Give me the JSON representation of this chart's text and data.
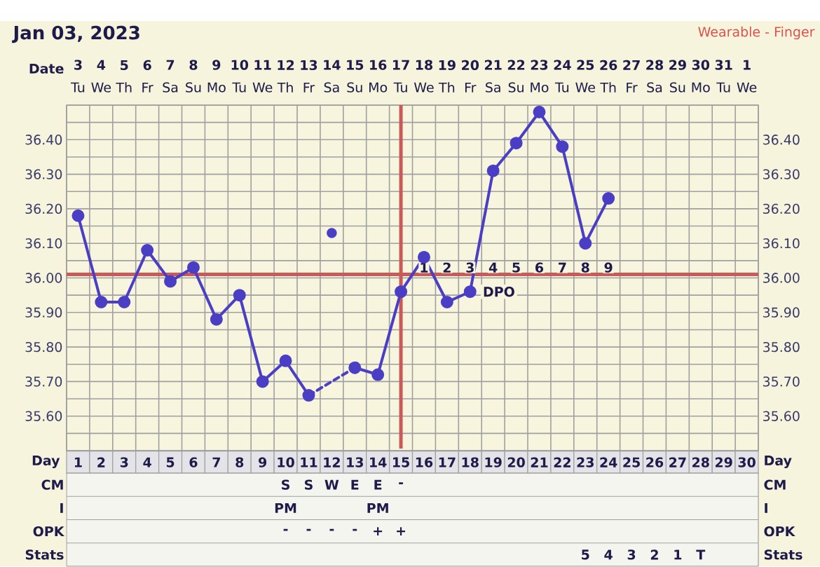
{
  "chart_data": [
    {
      "type": "heatmap",
      "title": "Jan 03, 2023",
      "subtitle": "Wearable - Finger",
      "grid": false,
      "categories": [
        "**3** Tu",
        "**4** We",
        "**5** Th",
        "**6** Fr",
        "**7** Sa",
        "**8** Su",
        "**9** Mo",
        "**10** Tu",
        "**11** We",
        "**12** Th",
        "**13** Fr",
        "**14** Sa",
        "**15** Su",
        "**16** Mo",
        "**17** Tu",
        "**18** We",
        "**19** Th",
        "**20** Fr",
        "**21** Sa",
        "**22** Su",
        "**23** Mo",
        "**24** Tu",
        "**25** We",
        "**26** Th",
        "**27** Fr",
        "**28** Sa",
        "**29** Su",
        "**30** Mo",
        "**31** Tu",
        "**1** We"
      ],
      "y_categories": [
        "Date"
      ],
      "cells": [
        [
          null,
          null,
          null,
          null,
          null,
          null,
          null,
          null,
          null,
          null,
          null,
          null,
          null,
          null,
          null,
          null,
          null,
          null,
          null,
          null,
          null,
          null,
          null,
          null,
          null,
          null,
          null,
          null,
          null,
          null
        ]
      ]
    },
    {
      "type": "line",
      "xlabel": "Day",
      "x": [
        1,
        2,
        3,
        4,
        5,
        6,
        7,
        8,
        9,
        10,
        11,
        12,
        13,
        14,
        15,
        16,
        17,
        18,
        19,
        20,
        21,
        22,
        23,
        24
      ],
      "xlim": [
        0.5,
        30.5
      ],
      "xticks": [
        1,
        2,
        3,
        4,
        5,
        6,
        7,
        8,
        9,
        10,
        11,
        12,
        13,
        14,
        15,
        16,
        17,
        18,
        19,
        20,
        21,
        22,
        23,
        24,
        25,
        26,
        27,
        28,
        29,
        30
      ],
      "ylim": [
        35.5,
        36.5
      ],
      "yticks": [
        {
          "value": 35.6,
          "label": "35.60"
        },
        {
          "value": 35.7,
          "label": "35.70"
        },
        {
          "value": 35.8,
          "label": "35.80"
        },
        {
          "value": 35.9,
          "label": "35.90"
        },
        {
          "value": 36.0,
          "label": "36.00"
        },
        {
          "value": 36.1,
          "label": "36.10"
        },
        {
          "value": 36.2,
          "label": "36.20"
        },
        {
          "value": 36.3,
          "label": "36.30"
        },
        {
          "value": 36.4,
          "label": "36.40"
        }
      ],
      "y2lim": [
        35.5,
        36.5
      ],
      "y2ticks": [
        {
          "value": 35.6,
          "label": "35.60"
        },
        {
          "value": 35.7,
          "label": "35.70"
        },
        {
          "value": 35.8,
          "label": "35.80"
        },
        {
          "value": 35.9,
          "label": "35.90"
        },
        {
          "value": 36.0,
          "label": "36.00"
        },
        {
          "value": 36.1,
          "label": "36.10"
        },
        {
          "value": 36.2,
          "label": "36.20"
        },
        {
          "value": 36.3,
          "label": "36.30"
        },
        {
          "value": 36.4,
          "label": "36.40"
        }
      ],
      "grid": true,
      "marker": "circle",
      "series": [
        {
          "color": "#4a3ec4",
          "values": [
            36.18,
            35.93,
            35.93,
            36.08,
            35.99,
            36.03,
            35.88,
            35.95,
            35.7,
            35.76,
            35.66,
            null,
            35.74,
            35.72,
            35.96,
            36.06,
            35.93,
            35.96,
            36.31,
            36.39,
            36.48,
            36.38,
            36.1,
            36.23
          ]
        },
        {
          "color": "#4b3fc6",
          "x": [
            11,
            13
          ],
          "values": [
            35.66,
            35.74
          ],
          "line_style": "dashed",
          "marker": "none"
        },
        {
          "type": "scatter",
          "color": "#4a3ec4",
          "x": [
            12
          ],
          "values": [
            36.13
          ]
        }
      ],
      "ref_lines": [
        {
          "axis": "y",
          "value": 36.01,
          "color": "#c85a5a"
        },
        {
          "axis": "x",
          "value": 15,
          "color": "#c85a5a"
        }
      ],
      "annotations": [
        {
          "text": "1",
          "x": 16,
          "y": 36.03
        },
        {
          "text": "2",
          "x": 17,
          "y": 36.03
        },
        {
          "text": "3",
          "x": 18,
          "y": 36.03
        },
        {
          "text": "4",
          "x": 19,
          "y": 36.03
        },
        {
          "text": "5",
          "x": 20,
          "y": 36.03
        },
        {
          "text": "6",
          "x": 21,
          "y": 36.03
        },
        {
          "text": "7",
          "x": 22,
          "y": 36.03
        },
        {
          "text": "8",
          "x": 23,
          "y": 36.03
        },
        {
          "text": "9",
          "x": 24,
          "y": 36.03
        },
        "DPO"
      ]
    },
    {
      "type": "heatmap",
      "grid": true,
      "tick_labels": "y",
      "categories": [
        null,
        null,
        null,
        null,
        null,
        null,
        null,
        null,
        null,
        null,
        null,
        null,
        null,
        null,
        null,
        null,
        null,
        null,
        null,
        null,
        null,
        null,
        null,
        null,
        null,
        null,
        null,
        null,
        null,
        null
      ],
      "y_categories": [
        "CM",
        "I",
        "OPK",
        "Stats"
      ],
      "y2_categories": [
        "CM",
        "I",
        "OPK",
        "Stats"
      ],
      "cells": [
        [
          null,
          null,
          null,
          null,
          null,
          null,
          null,
          null,
          null,
          null,
          null,
          null,
          null,
          null,
          null,
          null,
          null,
          null,
          null,
          null,
          null,
          null,
          null,
          null,
          null,
          null,
          null,
          null,
          null,
          null
        ],
        [
          null,
          null,
          null,
          null,
          null,
          null,
          null,
          null,
          null,
          null,
          null,
          null,
          null,
          null,
          null,
          null,
          null,
          null,
          null,
          null,
          null,
          null,
          null,
          null,
          null,
          null,
          null,
          null,
          null,
          null
        ],
        [
          null,
          null,
          null,
          null,
          null,
          null,
          null,
          null,
          null,
          null,
          null,
          null,
          null,
          null,
          null,
          null,
          null,
          null,
          null,
          null,
          null,
          null,
          null,
          null,
          null,
          null,
          null,
          null,
          null,
          null
        ],
        [
          null,
          null,
          null,
          null,
          null,
          null,
          null,
          null,
          null,
          null,
          null,
          null,
          null,
          null,
          null,
          null,
          null,
          null,
          null,
          null,
          null,
          null,
          null,
          null,
          null,
          null,
          null,
          null,
          null,
          null
        ]
      ],
      "cell_labels": [
        [
          null,
          null,
          null,
          null,
          null,
          null,
          null,
          null,
          null,
          "S",
          "S",
          "W",
          "E",
          "E",
          "-",
          null,
          null,
          null,
          null,
          null,
          null,
          null,
          null,
          null,
          null,
          null,
          null,
          null,
          null,
          null
        ],
        [
          null,
          null,
          null,
          null,
          null,
          null,
          null,
          null,
          null,
          "PM",
          null,
          null,
          null,
          "PM",
          null,
          null,
          null,
          null,
          null,
          null,
          null,
          null,
          null,
          null,
          null,
          null,
          null,
          null,
          null,
          null
        ],
        [
          null,
          null,
          null,
          null,
          null,
          null,
          null,
          null,
          null,
          "-",
          "-",
          "-",
          "-",
          "+",
          "+",
          null,
          null,
          null,
          null,
          null,
          null,
          null,
          null,
          null,
          null,
          null,
          null,
          null,
          null,
          null
        ],
        [
          null,
          null,
          null,
          null,
          null,
          null,
          null,
          null,
          null,
          null,
          null,
          null,
          null,
          null,
          null,
          null,
          null,
          null,
          null,
          null,
          null,
          null,
          "5",
          "4",
          "3",
          "2",
          "1",
          "T",
          null,
          null
        ]
      ]
    }
  ]
}
